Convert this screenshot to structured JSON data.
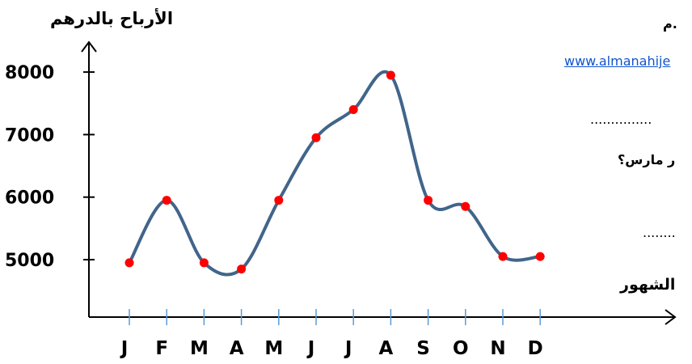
{
  "chart_data": {
    "type": "line",
    "smooth": true,
    "title": "",
    "ylabel": "الأرباح بالدرهم",
    "xlabel": "",
    "categories": [
      "J",
      "F",
      "M",
      "A",
      "M",
      "J",
      "J",
      "A",
      "S",
      "O",
      "N",
      "D"
    ],
    "values": [
      4950,
      5950,
      4950,
      4850,
      5950,
      6950,
      7400,
      7950,
      5950,
      5850,
      5050,
      5050
    ],
    "ylim": [
      4000,
      8000
    ],
    "yticks": [
      5000,
      6000,
      7000,
      8000
    ],
    "grid": false,
    "legend": "none",
    "colors": {
      "line": "#41658A",
      "point": "#FF0000",
      "axis": "#000000",
      "tick": "#5B9BD5"
    }
  },
  "background_text": {
    "line1": "م.",
    "link": "www.almanahije",
    "dots1": "...............",
    "question": "ر مارس؟",
    "dots2": "........",
    "xaxis_word": "الشهور"
  }
}
